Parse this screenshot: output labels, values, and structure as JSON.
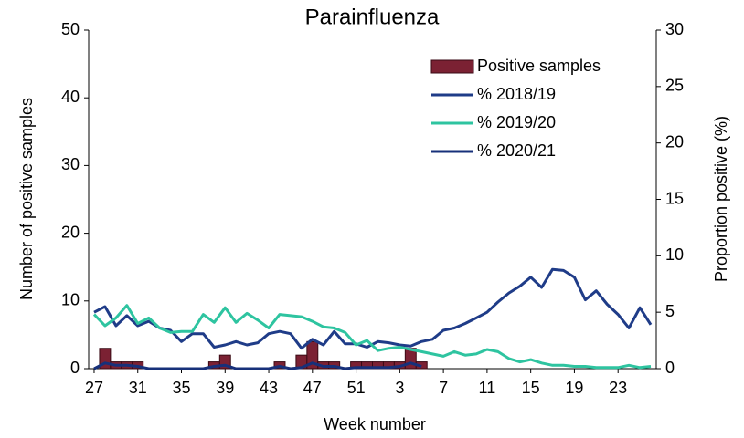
{
  "chart_data": {
    "type": "combo",
    "title": "Parainfluenza",
    "x_label": "Week number",
    "y_label": "Number of positive samples",
    "y2_label": "Proportion positive (%)",
    "categories": [
      "27",
      null,
      null,
      null,
      "31",
      null,
      null,
      null,
      "35",
      null,
      null,
      null,
      "39",
      null,
      null,
      null,
      "43",
      null,
      null,
      null,
      "47",
      null,
      null,
      null,
      "51",
      null,
      null,
      null,
      "3",
      null,
      null,
      null,
      "7",
      null,
      null,
      null,
      "11",
      null,
      null,
      null,
      "15",
      null,
      null,
      null,
      "19",
      null,
      null,
      null,
      "23",
      null,
      null,
      null
    ],
    "ylim": [
      0,
      50
    ],
    "yticks": [
      0,
      10,
      20,
      30,
      40,
      50
    ],
    "y2lim": [
      0,
      30
    ],
    "y2ticks": [
      0,
      5,
      10,
      15,
      20,
      25,
      30
    ],
    "series": [
      {
        "name": "Positive samples",
        "type": "bar",
        "color": "#7b2133",
        "values": [
          0,
          3,
          1,
          1,
          1,
          0,
          0,
          0,
          0,
          0,
          0,
          1,
          2,
          0,
          0,
          0,
          0,
          1,
          0,
          2,
          4,
          1,
          1,
          0,
          1,
          1,
          1,
          1,
          1,
          3,
          1,
          0,
          0,
          0,
          0,
          0,
          0,
          0,
          0,
          0,
          0,
          0,
          0,
          0,
          0,
          0,
          0,
          0,
          0,
          0,
          0,
          0
        ]
      },
      {
        "name": "% 2018/19",
        "type": "line",
        "axis": "y2",
        "color": "#1f3c88",
        "values": [
          5,
          5.5,
          3.8,
          4.7,
          3.8,
          4.2,
          3.6,
          3.4,
          2.4,
          3.1,
          3.1,
          1.9,
          2.1,
          2.4,
          2.1,
          2.3,
          3.1,
          3.3,
          3.1,
          1.8,
          2.6,
          2.1,
          3.3,
          2.2,
          2.2,
          1.9,
          2.4,
          2.3,
          2.1,
          2.0,
          2.4,
          2.6,
          3.4,
          3.6,
          4.0,
          4.5,
          5.0,
          5.9,
          6.7,
          7.3,
          8.1,
          7.2,
          8.8,
          8.7,
          8.1,
          6.1,
          6.9,
          5.7,
          4.8,
          3.6,
          5.4,
          3.9
        ]
      },
      {
        "name": "% 2019/20",
        "type": "line",
        "axis": "y2",
        "color": "#2ec4a0",
        "values": [
          4.8,
          3.8,
          4.5,
          5.6,
          4.0,
          4.5,
          3.6,
          3.2,
          3.3,
          3.3,
          4.8,
          4.1,
          5.4,
          4.1,
          4.9,
          4.3,
          3.6,
          4.8,
          4.7,
          4.6,
          4.2,
          3.7,
          3.6,
          3.2,
          2.1,
          2.5,
          1.6,
          1.8,
          1.9,
          1.7,
          1.5,
          1.3,
          1.1,
          1.5,
          1.2,
          1.3,
          1.7,
          1.5,
          0.9,
          0.6,
          0.8,
          0.5,
          0.3,
          0.3,
          0.2,
          0.2,
          0.1,
          0.1,
          0.1,
          0.3,
          0.1,
          0.2
        ]
      },
      {
        "name": "% 2020/21",
        "type": "line",
        "axis": "y2",
        "color": "#17307a",
        "values": [
          0,
          0.5,
          0.3,
          0.3,
          0.2,
          0,
          0,
          0,
          0,
          0,
          0,
          0.2,
          0.3,
          0,
          0,
          0,
          0,
          0.2,
          0,
          0.1,
          0.5,
          0.2,
          0.2,
          0,
          0.1,
          0.1,
          0.1,
          0.1,
          0.2,
          0.5,
          0.2,
          null,
          null,
          null,
          null,
          null,
          null,
          null,
          null,
          null,
          null,
          null,
          null,
          null,
          null,
          null,
          null,
          null,
          null,
          null,
          null,
          null
        ]
      }
    ]
  }
}
